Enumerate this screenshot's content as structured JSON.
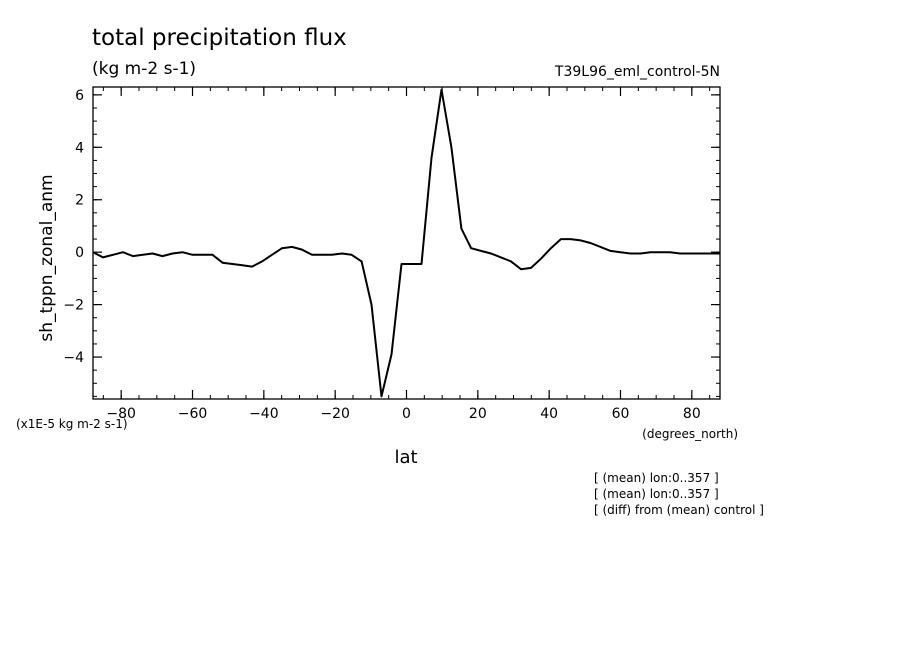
{
  "chart_data": {
    "type": "line",
    "title": "total precipitation flux",
    "subtitle": "(kg m-2 s-1)",
    "run_label": "T39L96_eml_control-5N",
    "ylabel": "sh_tppn_zonal_anm",
    "xlabel": "lat",
    "x_units_label": "(degrees_north)",
    "y_scale_label": "(x1E-5 kg m-2 s-1)",
    "xlim": [
      -87.9,
      87.9
    ],
    "ylim": [
      -5.6,
      6.3
    ],
    "x_ticks": [
      -80,
      -60,
      -40,
      -20,
      0,
      20,
      40,
      60,
      80
    ],
    "y_ticks": [
      -4,
      -2,
      0,
      2,
      4,
      6
    ],
    "grid": false,
    "series": [
      {
        "x": [
          -87.9,
          -85.1,
          -82.3,
          -79.5,
          -76.7,
          -73.9,
          -71.2,
          -68.4,
          -65.6,
          -62.8,
          -60.0,
          -57.2,
          -54.4,
          -51.6,
          -48.8,
          -46.0,
          -43.3,
          -40.5,
          -37.7,
          -34.9,
          -32.1,
          -29.3,
          -26.5,
          -23.7,
          -20.9,
          -18.1,
          -15.4,
          -12.6,
          -9.8,
          -7.0,
          -4.2,
          -1.4,
          1.4,
          4.2,
          7.0,
          9.8,
          12.6,
          15.4,
          18.1,
          20.9,
          23.7,
          26.5,
          29.3,
          32.1,
          34.9,
          37.7,
          40.5,
          43.3,
          46.0,
          48.8,
          51.6,
          54.4,
          57.2,
          60.0,
          62.8,
          65.6,
          68.4,
          71.2,
          73.9,
          76.7,
          79.5,
          82.3,
          85.1,
          87.9
        ],
        "values": [
          0.0,
          -0.2,
          -0.1,
          0.0,
          -0.15,
          -0.1,
          -0.05,
          -0.15,
          -0.05,
          0.0,
          -0.1,
          -0.1,
          -0.1,
          -0.4,
          -0.45,
          -0.5,
          -0.55,
          -0.35,
          -0.1,
          0.15,
          0.2,
          0.1,
          -0.1,
          -0.1,
          -0.1,
          -0.05,
          -0.1,
          -0.35,
          -2.0,
          -5.5,
          -3.9,
          -0.45,
          -0.45,
          -0.45,
          3.6,
          6.2,
          4.0,
          0.9,
          0.15,
          0.05,
          -0.05,
          -0.2,
          -0.35,
          -0.65,
          -0.6,
          -0.25,
          0.15,
          0.5,
          0.5,
          0.45,
          0.35,
          0.2,
          0.05,
          0.0,
          -0.05,
          -0.05,
          0.0,
          0.0,
          0.0,
          -0.05,
          -0.05,
          -0.05,
          -0.05,
          -0.05
        ]
      }
    ],
    "annotations": [
      "[ (mean) lon:0..357 ]",
      "[ (mean) lon:0..357 ]",
      "[ (diff) from (mean) control ]"
    ]
  }
}
